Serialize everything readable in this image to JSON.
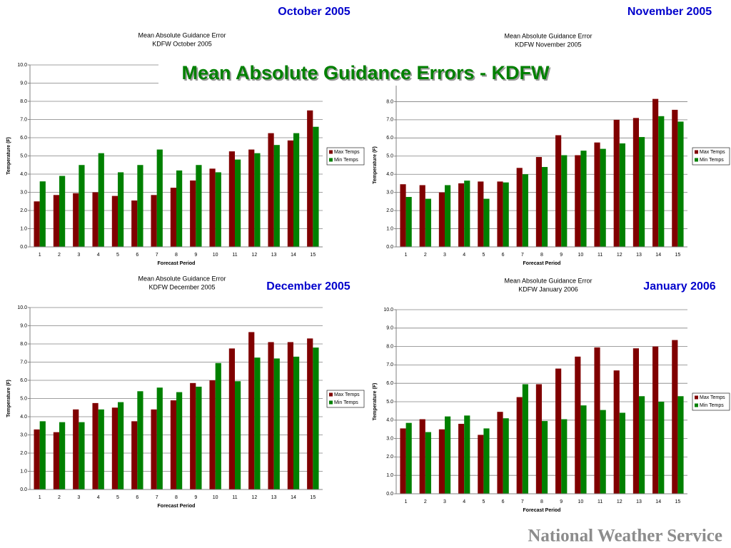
{
  "slide": {
    "title": "Mean Absolute Guidance Errors - KDFW",
    "footer": "National Weather Service"
  },
  "chart_data": [
    {
      "type": "bar",
      "caption": "October 2005",
      "title": "Mean Absolute Guidance Error",
      "subtitle": "KDFW October 2005",
      "x_label": "Forecast Period",
      "y_label": "Temperature (F)",
      "categories": [
        "1",
        "2",
        "3",
        "4",
        "5",
        "6",
        "7",
        "8",
        "9",
        "10",
        "11",
        "12",
        "13",
        "14",
        "15"
      ],
      "series": [
        {
          "name": "Max Temps",
          "color": "#800000",
          "values": [
            2.5,
            2.85,
            2.95,
            3.0,
            2.8,
            2.55,
            2.85,
            3.25,
            3.65,
            4.3,
            5.25,
            5.35,
            6.25,
            5.85,
            7.5
          ]
        },
        {
          "name": "Min Temps",
          "color": "#008000",
          "values": [
            3.6,
            3.9,
            4.5,
            5.15,
            4.1,
            4.5,
            5.35,
            4.2,
            4.5,
            4.1,
            4.8,
            5.15,
            5.6,
            6.25,
            6.6
          ]
        }
      ],
      "ylim": [
        0,
        10
      ],
      "yticks": [
        {
          "value": 0,
          "label": "0.0"
        },
        {
          "value": 1,
          "label": "1.0"
        },
        {
          "value": 2,
          "label": "2.0"
        },
        {
          "value": 3,
          "label": "3.0"
        },
        {
          "value": 4,
          "label": "4.0"
        },
        {
          "value": 5,
          "label": "5.0"
        },
        {
          "value": 6,
          "label": "6.0"
        },
        {
          "value": 7,
          "label": "7.0"
        },
        {
          "value": 8,
          "label": "8.0"
        },
        {
          "value": 9,
          "label": "9.0"
        },
        {
          "value": 10,
          "label": "10.0"
        }
      ],
      "grid": true,
      "legend": "right"
    },
    {
      "type": "bar",
      "caption": "November 2005",
      "title": "Mean Absolute Guidance Error",
      "subtitle": "KDFW November 2005",
      "x_label": "Forecast Period",
      "y_label": "Temperature (F)",
      "categories": [
        "1",
        "2",
        "3",
        "4",
        "5",
        "6",
        "7",
        "8",
        "9",
        "10",
        "11",
        "12",
        "13",
        "14",
        "15"
      ],
      "series": [
        {
          "name": "Max Temps",
          "color": "#800000",
          "values": [
            3.45,
            3.4,
            3.0,
            3.5,
            3.6,
            3.6,
            4.35,
            4.95,
            6.15,
            5.05,
            5.75,
            7.0,
            7.1,
            8.15,
            7.55
          ]
        },
        {
          "name": "Min Temps",
          "color": "#008000",
          "values": [
            2.75,
            2.65,
            3.4,
            3.65,
            2.65,
            3.55,
            4.0,
            4.4,
            5.05,
            5.3,
            5.4,
            5.7,
            6.05,
            7.2,
            6.9
          ]
        }
      ],
      "ylim": [
        0,
        9
      ],
      "yticks": [
        {
          "value": 0,
          "label": "0.0"
        },
        {
          "value": 1,
          "label": "1.0"
        },
        {
          "value": 2,
          "label": "2.0"
        },
        {
          "value": 3,
          "label": "3.0"
        },
        {
          "value": 4,
          "label": "4.0"
        },
        {
          "value": 5,
          "label": "5.0"
        },
        {
          "value": 6,
          "label": "6.0"
        },
        {
          "value": 7,
          "label": "7.0"
        },
        {
          "value": 8,
          "label": "8.0"
        }
      ],
      "grid": true,
      "legend": "right"
    },
    {
      "type": "bar",
      "caption": "December 2005",
      "title": "Mean Absolute Guidance Error",
      "subtitle": "KDFW December 2005",
      "x_label": "Forecast Period",
      "y_label": "Temperature (F)",
      "categories": [
        "1",
        "2",
        "3",
        "4",
        "5",
        "6",
        "7",
        "8",
        "9",
        "10",
        "11",
        "12",
        "13",
        "14",
        "15"
      ],
      "series": [
        {
          "name": "Max Temps",
          "color": "#800000",
          "values": [
            3.3,
            3.15,
            4.4,
            4.75,
            4.5,
            3.75,
            4.4,
            4.9,
            5.85,
            6.0,
            7.75,
            8.65,
            8.1,
            8.1,
            8.3
          ]
        },
        {
          "name": "Min Temps",
          "color": "#008000",
          "values": [
            3.75,
            3.7,
            3.7,
            4.4,
            4.8,
            5.4,
            5.6,
            5.35,
            5.65,
            6.95,
            5.95,
            7.25,
            7.2,
            7.3,
            7.8
          ]
        }
      ],
      "ylim": [
        0,
        10
      ],
      "yticks": [
        {
          "value": 0,
          "label": "0.0"
        },
        {
          "value": 1,
          "label": "1.0"
        },
        {
          "value": 2,
          "label": "2.0"
        },
        {
          "value": 3,
          "label": "3.0"
        },
        {
          "value": 4,
          "label": "4.0"
        },
        {
          "value": 5,
          "label": "5.0"
        },
        {
          "value": 6,
          "label": "6.0"
        },
        {
          "value": 7,
          "label": "7.0"
        },
        {
          "value": 8,
          "label": "8.0"
        },
        {
          "value": 9,
          "label": "9.0"
        },
        {
          "value": 10,
          "label": "10.0"
        }
      ],
      "grid": true,
      "legend": "right"
    },
    {
      "type": "bar",
      "caption": "January 2006",
      "title": "Mean Absolute Guidance Error",
      "subtitle": "KDFW January 2006",
      "x_label": "Forecast Period",
      "y_label": "Temperature (F)",
      "categories": [
        "1",
        "2",
        "3",
        "4",
        "5",
        "6",
        "7",
        "8",
        "9",
        "10",
        "11",
        "12",
        "13",
        "14",
        "15"
      ],
      "series": [
        {
          "name": "Max Temps",
          "color": "#800000",
          "values": [
            3.55,
            4.05,
            3.5,
            3.8,
            3.2,
            4.45,
            5.25,
            5.95,
            6.8,
            7.45,
            7.95,
            6.7,
            7.9,
            8.0,
            8.35
          ]
        },
        {
          "name": "Min Temps",
          "color": "#008000",
          "values": [
            3.85,
            3.35,
            4.2,
            4.25,
            3.55,
            4.1,
            5.95,
            3.95,
            4.05,
            4.8,
            4.55,
            4.4,
            5.3,
            5.0,
            5.3
          ]
        }
      ],
      "ylim": [
        0,
        10
      ],
      "yticks": [
        {
          "value": 0,
          "label": "0.0"
        },
        {
          "value": 1,
          "label": "1.0"
        },
        {
          "value": 2,
          "label": "2.0"
        },
        {
          "value": 3,
          "label": "3.0"
        },
        {
          "value": 4,
          "label": "4.0"
        },
        {
          "value": 5,
          "label": "5.0"
        },
        {
          "value": 6,
          "label": "6.0"
        },
        {
          "value": 7,
          "label": "7.0"
        },
        {
          "value": 8,
          "label": "8.0"
        },
        {
          "value": 9,
          "label": "9.0"
        },
        {
          "value": 10,
          "label": "10.0"
        }
      ],
      "grid": true,
      "legend": "right"
    }
  ]
}
